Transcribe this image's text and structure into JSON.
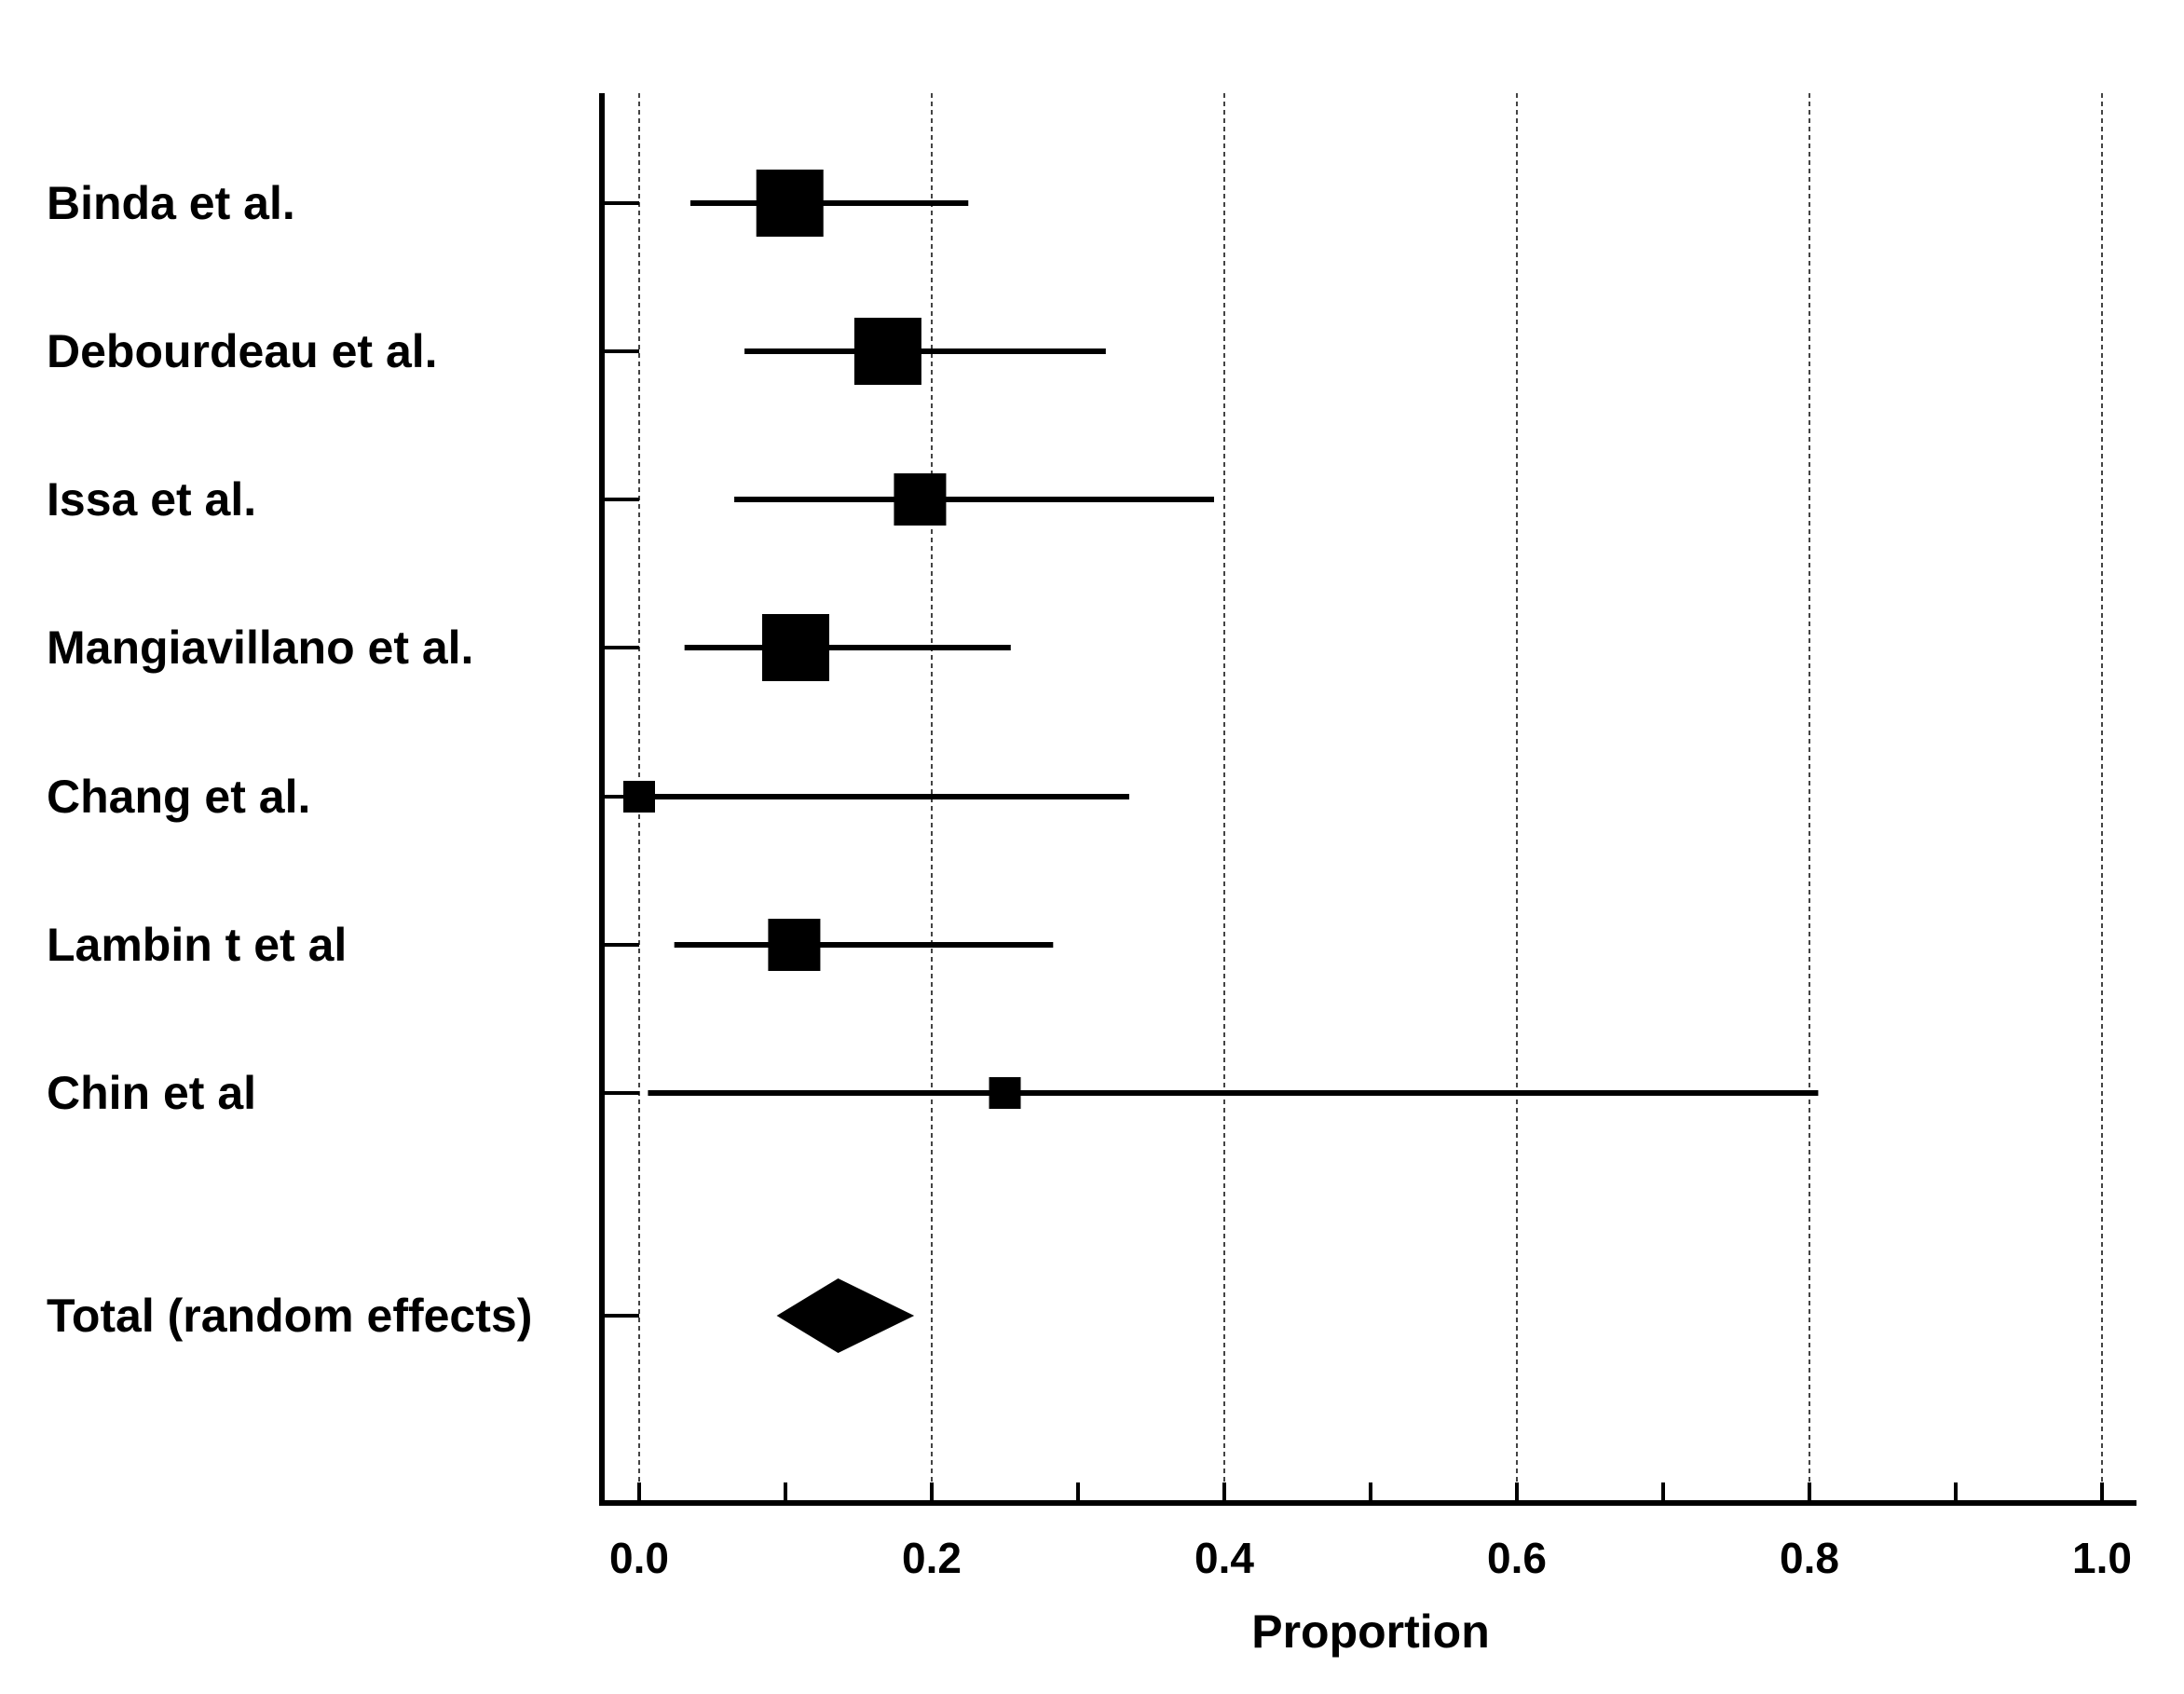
{
  "chart_data": {
    "type": "forest",
    "xlabel": "Proportion",
    "xlim": [
      0.0,
      1.0
    ],
    "x_ticks": [
      "0.0",
      "0.2",
      "0.4",
      "0.6",
      "0.8",
      "1.0"
    ],
    "minor_ticks": [
      0.1,
      0.3,
      0.5,
      0.7,
      0.9
    ],
    "grid": "vertical dashed",
    "studies": [
      {
        "label": "Binda et al.",
        "estimate": 0.103,
        "ci_low": 0.035,
        "ci_high": 0.225,
        "weight": "large"
      },
      {
        "label": "Debourdeau et al.",
        "estimate": 0.17,
        "ci_low": 0.072,
        "ci_high": 0.319,
        "weight": "large"
      },
      {
        "label": "Issa et al.",
        "estimate": 0.192,
        "ci_low": 0.065,
        "ci_high": 0.393,
        "weight": "medium"
      },
      {
        "label": "Mangiavillano et al.",
        "estimate": 0.107,
        "ci_low": 0.031,
        "ci_high": 0.254,
        "weight": "large"
      },
      {
        "label": "Chang et al.",
        "estimate": 0.0,
        "ci_low": -0.01,
        "ci_high": 0.335,
        "weight": "small"
      },
      {
        "label": "Lambin t et al",
        "estimate": 0.106,
        "ci_low": 0.024,
        "ci_high": 0.283,
        "weight": "medium"
      },
      {
        "label": "Chin et al",
        "estimate": 0.25,
        "ci_low": 0.006,
        "ci_high": 0.806,
        "weight": "small"
      }
    ],
    "total": {
      "label": "Total (random effects)",
      "estimate": 0.136,
      "ci_low": 0.094,
      "ci_high": 0.188
    }
  }
}
